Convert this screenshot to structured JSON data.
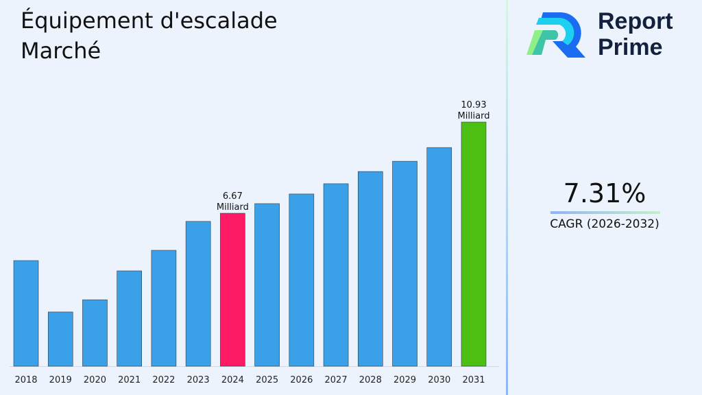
{
  "title": "Équipement d'escalade Marché",
  "logo": {
    "line1": "Report",
    "line2": "Prime"
  },
  "cagr": {
    "value": "7.31%",
    "label": "CAGR (2026-2032)"
  },
  "colors": {
    "bar": "#3aa0e8",
    "highlight_2024": "#ff1a66",
    "highlight_2031": "#4cbf12"
  },
  "chart_data": {
    "type": "bar",
    "title": "Équipement d'escalade Marché",
    "xlabel": "",
    "ylabel": "",
    "categories": [
      "2018",
      "2019",
      "2020",
      "2021",
      "2022",
      "2023",
      "2024",
      "2025",
      "2026",
      "2027",
      "2028",
      "2029",
      "2030",
      "2031"
    ],
    "values": [
      4.46,
      2.06,
      2.63,
      3.98,
      4.94,
      6.29,
      6.67,
      7.12,
      7.57,
      8.05,
      8.62,
      9.1,
      9.74,
      10.93
    ],
    "data_labels": {
      "2024": [
        "6.67",
        "Milliard"
      ],
      "2031": [
        "10.93",
        "Milliard"
      ]
    },
    "grid": false,
    "ylim": [
      0,
      11
    ]
  }
}
